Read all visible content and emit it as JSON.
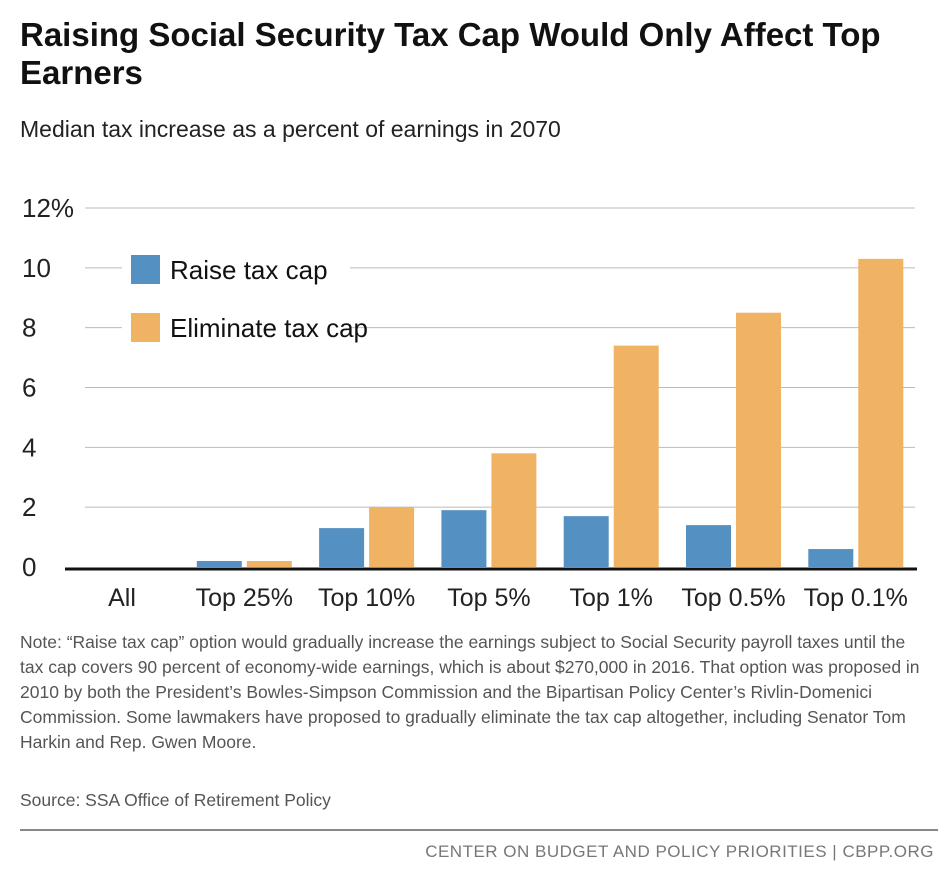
{
  "title": "Raising Social Security Tax Cap Would Only Affect Top Earners",
  "subtitle": "Median tax increase as a percent of earnings in 2070",
  "note": "Note: “Raise tax cap” option would gradually increase the earnings subject to Social Security payroll taxes until the tax cap covers 90 percent of economy-wide earnings, which is about $270,000 in 2016.  That option was proposed in 2010 by both the President’s Bowles-Simpson Commission and the Bipartisan Policy Center’s Rivlin-Domenici Commission. Some lawmakers have proposed to gradually eliminate the tax cap altogether, including Senator Tom Harkin and Rep. Gwen Moore.",
  "source": "Source: SSA Office of Retirement Policy",
  "footer": "CENTER ON BUDGET AND POLICY PRIORITIES | CBPP.ORG",
  "chart_data": {
    "type": "bar",
    "categories": [
      "All",
      "Top 25%",
      "Top 10%",
      "Top 5%",
      "Top 1%",
      "Top 0.5%",
      "Top 0.1%"
    ],
    "series": [
      {
        "name": "Raise tax cap",
        "color": "#5590c2",
        "values": [
          0,
          0.2,
          1.3,
          1.9,
          1.7,
          1.4,
          0.6
        ]
      },
      {
        "name": "Eliminate tax cap",
        "color": "#f0b263",
        "values": [
          0,
          0.2,
          2.0,
          3.8,
          7.4,
          8.5,
          10.3
        ]
      }
    ],
    "ylim": [
      0,
      12
    ],
    "yticks": [
      "0",
      "2",
      "4",
      "6",
      "8",
      "10",
      "12%"
    ],
    "grid": true,
    "legend": "top-left"
  }
}
